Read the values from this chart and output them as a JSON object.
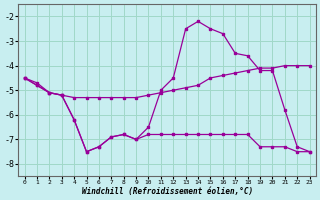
{
  "xlabel": "Windchill (Refroidissement éolien,°C)",
  "background_color": "#c8eef0",
  "grid_color": "#a0d8c8",
  "line_color": "#990099",
  "xlim": [
    -0.5,
    23.5
  ],
  "ylim": [
    -8.5,
    -1.5
  ],
  "yticks": [
    -8,
    -7,
    -6,
    -5,
    -4,
    -3,
    -2
  ],
  "xticks": [
    0,
    1,
    2,
    3,
    4,
    5,
    6,
    7,
    8,
    9,
    10,
    11,
    12,
    13,
    14,
    15,
    16,
    17,
    18,
    19,
    20,
    21,
    22,
    23
  ],
  "line1_x": [
    0,
    1,
    2,
    3,
    4,
    5,
    6,
    7,
    8,
    9,
    10,
    11,
    12,
    13,
    14,
    15,
    16,
    17,
    18,
    19,
    20,
    21,
    22,
    23
  ],
  "line1_y": [
    -4.5,
    -4.7,
    -5.1,
    -5.2,
    -5.3,
    -5.3,
    -5.3,
    -5.3,
    -5.3,
    -5.3,
    -5.2,
    -5.1,
    -5.0,
    -4.9,
    -4.8,
    -4.5,
    -4.4,
    -4.3,
    -4.2,
    -4.1,
    -4.1,
    -4.0,
    -4.0,
    -4.0
  ],
  "line2_x": [
    0,
    1,
    2,
    3,
    4,
    5,
    6,
    7,
    8,
    9,
    10,
    11,
    12,
    13,
    14,
    15,
    16,
    17,
    18,
    19,
    20,
    21,
    22,
    23
  ],
  "line2_y": [
    -4.5,
    -4.8,
    -5.1,
    -5.2,
    -6.2,
    -7.5,
    -7.3,
    -6.9,
    -6.8,
    -7.0,
    -6.5,
    -5.0,
    -4.5,
    -2.5,
    -2.2,
    -2.5,
    -2.7,
    -3.5,
    -3.6,
    -4.2,
    -4.2,
    -5.8,
    -7.3,
    -7.5
  ],
  "line3_x": [
    0,
    1,
    2,
    3,
    4,
    5,
    6,
    7,
    8,
    9,
    10,
    11,
    12,
    13,
    14,
    15,
    16,
    17,
    18,
    19,
    20,
    21,
    22,
    23
  ],
  "line3_y": [
    -4.5,
    -4.8,
    -5.1,
    -5.2,
    -6.2,
    -7.5,
    -7.3,
    -6.9,
    -6.8,
    -7.0,
    -6.8,
    -6.8,
    -6.8,
    -6.8,
    -6.8,
    -6.8,
    -6.8,
    -6.8,
    -6.8,
    -7.3,
    -7.3,
    -7.3,
    -7.5,
    -7.5
  ]
}
